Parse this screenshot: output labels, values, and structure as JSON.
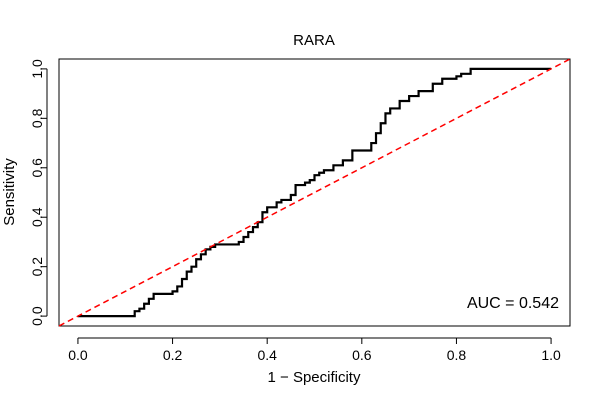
{
  "chart_data": {
    "type": "line",
    "title": "RARA",
    "xlabel": "1 − Specificity",
    "ylabel": "Sensitivity",
    "xlim": [
      -0.04,
      1.04
    ],
    "ylim": [
      -0.04,
      1.04
    ],
    "xticks": [
      0.0,
      0.2,
      0.4,
      0.6,
      0.8,
      1.0
    ],
    "xtick_labels": [
      "0.0",
      "0.2",
      "0.4",
      "0.6",
      "0.8",
      "1.0"
    ],
    "yticks": [
      0.0,
      0.2,
      0.4,
      0.6,
      0.8,
      1.0
    ],
    "ytick_labels": [
      "0.0",
      "0.2",
      "0.4",
      "0.6",
      "0.8",
      "1.0"
    ],
    "grid": false,
    "annotation": "AUC = 0.542",
    "series": [
      {
        "color": "#000000",
        "style": "solid",
        "x": [
          0.0,
          0.11,
          0.12,
          0.13,
          0.14,
          0.15,
          0.16,
          0.17,
          0.2,
          0.21,
          0.22,
          0.23,
          0.24,
          0.25,
          0.26,
          0.27,
          0.28,
          0.29,
          0.3,
          0.34,
          0.35,
          0.36,
          0.37,
          0.38,
          0.39,
          0.4,
          0.42,
          0.43,
          0.45,
          0.46,
          0.48,
          0.49,
          0.5,
          0.51,
          0.52,
          0.54,
          0.56,
          0.58,
          0.61,
          0.62,
          0.63,
          0.64,
          0.65,
          0.66,
          0.68,
          0.7,
          0.72,
          0.75,
          0.77,
          0.8,
          0.81,
          0.83,
          1.0
        ],
        "y": [
          0.0,
          0.0,
          0.02,
          0.03,
          0.05,
          0.07,
          0.09,
          0.09,
          0.1,
          0.12,
          0.15,
          0.18,
          0.2,
          0.23,
          0.25,
          0.27,
          0.28,
          0.29,
          0.29,
          0.3,
          0.32,
          0.34,
          0.36,
          0.38,
          0.42,
          0.44,
          0.46,
          0.47,
          0.49,
          0.53,
          0.54,
          0.55,
          0.57,
          0.58,
          0.59,
          0.61,
          0.63,
          0.67,
          0.67,
          0.7,
          0.74,
          0.78,
          0.82,
          0.84,
          0.87,
          0.89,
          0.91,
          0.94,
          0.96,
          0.97,
          0.98,
          1.0,
          1.0
        ]
      },
      {
        "color": "#ff0000",
        "style": "dashed",
        "x": [
          -0.04,
          1.04
        ],
        "y": [
          -0.04,
          1.04
        ]
      }
    ]
  }
}
